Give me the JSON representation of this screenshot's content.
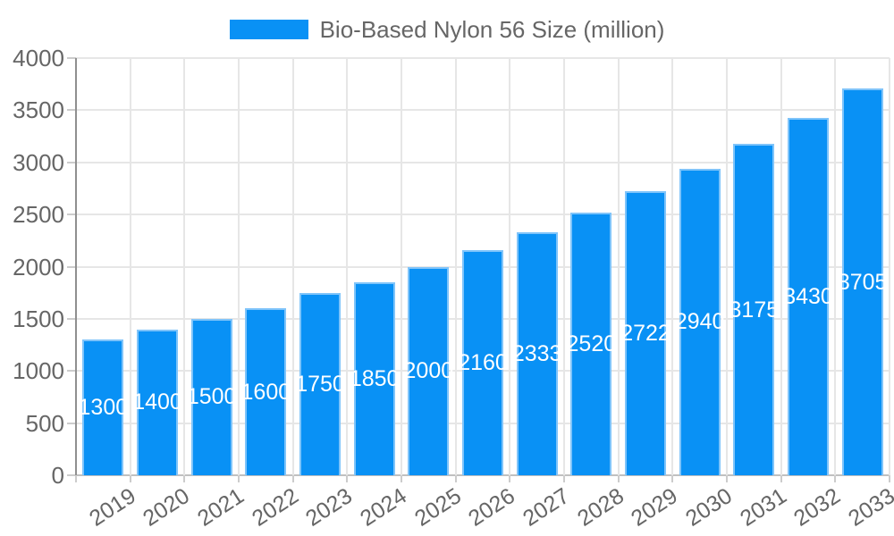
{
  "chart_data": {
    "type": "bar",
    "title": "",
    "legend": "Bio-Based Nylon 56 Size (million)",
    "legend_position": "top",
    "categories": [
      "2019",
      "2020",
      "2021",
      "2022",
      "2023",
      "2024",
      "2025",
      "2026",
      "2027",
      "2028",
      "2029",
      "2030",
      "2031",
      "2032",
      "2033"
    ],
    "series": [
      {
        "name": "Bio-Based Nylon 56 Size (million)",
        "values": [
          1300,
          1400,
          1500,
          1600,
          1750,
          1850,
          2000,
          2160,
          2333,
          2520,
          2722,
          2940,
          3175,
          3430,
          3705
        ]
      }
    ],
    "value_labels_shown": true,
    "value_label_position": "inside-center",
    "xlabel": "",
    "ylabel": "",
    "ylim": [
      0,
      4000
    ],
    "ytick_step": 500,
    "ytick_labels": [
      "0",
      "500",
      "1000",
      "1500",
      "2000",
      "2500",
      "3000",
      "3500",
      "4000"
    ],
    "grid": true,
    "colors": {
      "bar_fill": "#0991f5",
      "bar_border": "#7fc4fa",
      "gridline": "#e6e6e6",
      "axis_line": "#8f8f8f",
      "baseline": "#c0c0c0",
      "tick": "#cccccc",
      "text": "#666666",
      "value_label": "#ffffff"
    }
  }
}
